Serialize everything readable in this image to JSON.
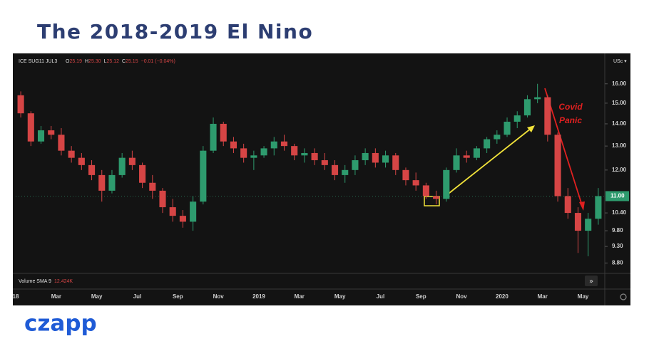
{
  "chart_data": {
    "type": "candlestick",
    "title": "The 2018-2019 El Nino",
    "logo": "czapp",
    "symbol": "ICE SUG11 JUL3",
    "quote": [
      {
        "key": "O",
        "value": "25.19"
      },
      {
        "key": "H",
        "value": "25.30"
      },
      {
        "key": "L",
        "value": "25.12"
      },
      {
        "key": "C",
        "value": "25.15"
      }
    ],
    "change": "−0.01 (−0.04%)",
    "unit": "USc ▾",
    "volume_label": "Volume SMA 9",
    "volume_value": "12.424K",
    "annotation": [
      "Covid",
      "Panic"
    ],
    "categories": [
      "18",
      null,
      null,
      null,
      "Mar",
      null,
      null,
      null,
      "May",
      null,
      null,
      null,
      "Jul",
      null,
      null,
      null,
      "Sep",
      null,
      null,
      null,
      "Nov",
      null,
      null,
      null,
      "2019",
      null,
      null,
      null,
      "Mar",
      null,
      null,
      null,
      "May",
      null,
      null,
      null,
      "Jul",
      null,
      null,
      null,
      "Sep",
      null,
      null,
      null,
      "Nov",
      null,
      null,
      null,
      "2020",
      null,
      null,
      null,
      "Mar",
      null,
      null,
      null,
      "May",
      null
    ],
    "open": [
      15.4,
      14.5,
      13.2,
      13.7,
      13.5,
      12.8,
      12.5,
      12.2,
      11.8,
      11.2,
      11.8,
      12.5,
      12.2,
      11.5,
      11.2,
      10.6,
      10.3,
      10.1,
      10.8,
      12.8,
      14.0,
      13.2,
      12.9,
      12.5,
      12.6,
      12.9,
      13.2,
      13.0,
      12.6,
      12.7,
      12.4,
      12.2,
      11.8,
      12.0,
      12.4,
      12.7,
      12.3,
      12.6,
      12.0,
      11.6,
      11.4,
      11.0,
      10.9,
      12.0,
      12.6,
      12.5,
      12.9,
      13.3,
      13.5,
      14.1,
      14.4,
      15.2,
      15.3,
      13.5,
      11.0,
      10.4,
      9.8,
      10.2
    ],
    "high": [
      15.6,
      14.6,
      13.9,
      13.9,
      13.8,
      13.0,
      12.7,
      12.4,
      12.0,
      12.0,
      12.7,
      12.8,
      12.3,
      11.8,
      11.3,
      10.9,
      10.5,
      11.0,
      13.0,
      14.3,
      14.1,
      13.4,
      13.1,
      12.8,
      13.0,
      13.4,
      13.5,
      13.1,
      12.9,
      12.9,
      12.7,
      12.4,
      12.2,
      12.6,
      12.9,
      12.9,
      12.8,
      12.7,
      12.1,
      11.9,
      11.5,
      11.2,
      12.1,
      12.9,
      12.8,
      13.0,
      13.4,
      13.7,
      14.3,
      14.6,
      15.4,
      16.0,
      15.4,
      13.6,
      11.3,
      10.6,
      10.4,
      11.3
    ],
    "low": [
      14.3,
      13.0,
      13.1,
      13.3,
      12.6,
      12.3,
      12.0,
      11.6,
      10.8,
      11.1,
      11.7,
      12.0,
      11.3,
      10.9,
      10.4,
      10.1,
      9.9,
      9.8,
      10.7,
      12.7,
      13.0,
      12.7,
      12.3,
      12.0,
      12.5,
      12.6,
      12.8,
      12.4,
      12.3,
      12.2,
      12.0,
      11.6,
      11.5,
      11.8,
      12.2,
      12.1,
      12.1,
      11.8,
      11.4,
      11.2,
      10.9,
      10.7,
      10.8,
      11.9,
      12.3,
      12.4,
      12.7,
      13.1,
      13.4,
      13.8,
      14.3,
      15.0,
      13.2,
      10.8,
      10.2,
      9.1,
      9.0,
      10.0
    ],
    "close": [
      14.5,
      13.2,
      13.7,
      13.5,
      12.8,
      12.5,
      12.2,
      11.8,
      11.2,
      11.8,
      12.5,
      12.2,
      11.5,
      11.2,
      10.6,
      10.3,
      10.1,
      10.8,
      12.8,
      14.0,
      13.2,
      12.9,
      12.5,
      12.6,
      12.9,
      13.2,
      13.0,
      12.6,
      12.7,
      12.4,
      12.2,
      11.8,
      12.0,
      12.4,
      12.7,
      12.3,
      12.6,
      12.0,
      11.6,
      11.4,
      11.0,
      10.9,
      12.0,
      12.6,
      12.5,
      12.9,
      13.3,
      13.5,
      14.1,
      14.4,
      15.2,
      15.3,
      13.5,
      11.0,
      10.4,
      9.8,
      10.2,
      11.0
    ],
    "up_color": "#2e9b6e",
    "down_color": "#d64545",
    "log_scale": true,
    "grid": false,
    "ylim": [
      8.5,
      17.5
    ],
    "yticks": [
      {
        "value": 16,
        "label": "16.00"
      },
      {
        "value": 15,
        "label": "15.00"
      },
      {
        "value": 14,
        "label": "14.00"
      },
      {
        "value": 13,
        "label": "13.00"
      },
      {
        "value": 12,
        "label": "12.00"
      },
      {
        "value": 10.4,
        "label": "10.40"
      },
      {
        "value": 9.8,
        "label": "9.80"
      },
      {
        "value": 9.3,
        "label": "9.30"
      },
      {
        "value": 8.8,
        "label": "8.80"
      }
    ],
    "price_marker": {
      "value": 11,
      "label": "11.00",
      "color": "#2e9b6e"
    }
  }
}
